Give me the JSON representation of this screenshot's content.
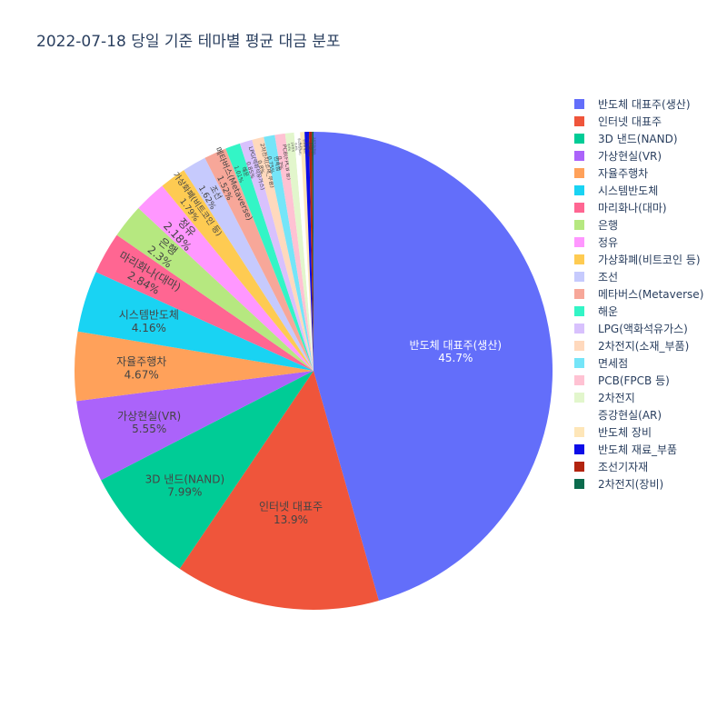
{
  "chart_data": {
    "type": "pie",
    "title": "2022-07-18 당일 기준 테마별 평균 대금 분포",
    "legend_position": "top-right",
    "slices": [
      {
        "label": "반도체 대표주(생산)",
        "percent": 45.7,
        "percent_label": "45.7%",
        "color": "#636efa"
      },
      {
        "label": "인터넷 대표주",
        "percent": 13.9,
        "percent_label": "13.9%",
        "color": "#EF553B"
      },
      {
        "label": "3D 낸드(NAND)",
        "percent": 7.99,
        "percent_label": "7.99%",
        "color": "#00cc96"
      },
      {
        "label": "가상현실(VR)",
        "percent": 5.55,
        "percent_label": "5.55%",
        "color": "#ab63fa"
      },
      {
        "label": "자율주행차",
        "percent": 4.67,
        "percent_label": "4.67%",
        "color": "#FFA15A"
      },
      {
        "label": "시스템반도체",
        "percent": 4.16,
        "percent_label": "4.16%",
        "color": "#19d3f3"
      },
      {
        "label": "마리화나(대마)",
        "percent": 2.84,
        "percent_label": "2.84%",
        "color": "#FF6692"
      },
      {
        "label": "은행",
        "percent": 2.3,
        "percent_label": "2.3%",
        "color": "#B6E880"
      },
      {
        "label": "정유",
        "percent": 2.18,
        "percent_label": "2.18%",
        "color": "#FF97FF"
      },
      {
        "label": "가상화폐(비트코인 등)",
        "percent": 1.79,
        "percent_label": "1.79%",
        "color": "#FECB52"
      },
      {
        "label": "조선",
        "percent": 1.62,
        "percent_label": "1.62%",
        "color": "#c6cafd"
      },
      {
        "label": "메타버스(Metaverse)",
        "percent": 1.52,
        "percent_label": "1.52%",
        "color": "#f7a799"
      },
      {
        "label": "해운",
        "percent": 1.01,
        "percent_label": "1.01%",
        "color": "#33f5c6"
      },
      {
        "label": "LPG(액화석유가스)",
        "percent": 0.85,
        "percent_label": "0.85%",
        "color": "#d8c1fd"
      },
      {
        "label": "2차전지(소재_부품)",
        "percent": 0.8,
        "percent_label": "0.8%",
        "color": "#ffd9bd"
      },
      {
        "label": "면세점",
        "percent": 0.75,
        "percent_label": "0.75%",
        "color": "#75e5f8"
      },
      {
        "label": "PCB(FPCB 등)",
        "percent": 0.7,
        "percent_label": "0.7%",
        "color": "#ffc2d3"
      },
      {
        "label": "2차전지",
        "percent": 0.6,
        "percent_label": "0.6%",
        "color": "#e2f6cc"
      },
      {
        "label": "증강현실(AR)",
        "percent": 0.4,
        "percent_label": "0.4%",
        "color": "#ffffff"
      },
      {
        "label": "반도체 장비",
        "percent": 0.3,
        "percent_label": "0.3%",
        "color": "#fee6b8"
      },
      {
        "label": "반도체 재료_부품",
        "percent": 0.3,
        "percent_label": "0.3%",
        "color": "#0d0de8"
      },
      {
        "label": "조선기자재",
        "percent": 0.2,
        "percent_label": "0.2%",
        "color": "#b2240f"
      },
      {
        "label": "2차전지(장비)",
        "percent": 0.1,
        "percent_label": "0.1%",
        "color": "#0b6b4d"
      }
    ]
  }
}
